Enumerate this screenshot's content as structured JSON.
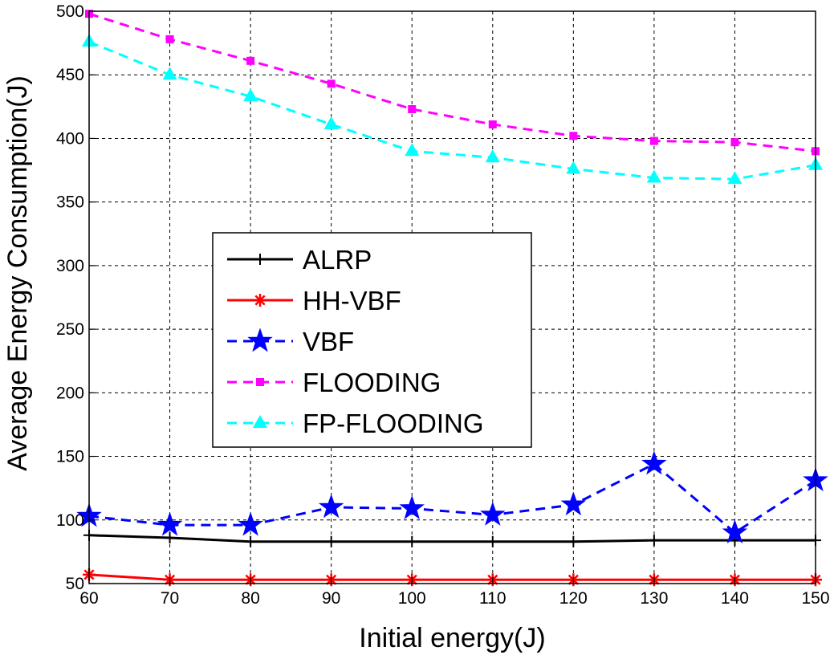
{
  "chart_data": {
    "type": "line",
    "xlabel": "Initial energy(J)",
    "ylabel": "Average Energy Consumption(J)",
    "xlim": [
      60,
      150
    ],
    "ylim": [
      50,
      500
    ],
    "xticks": [
      60,
      70,
      80,
      90,
      100,
      110,
      120,
      130,
      140,
      150
    ],
    "yticks": [
      50,
      100,
      150,
      200,
      250,
      300,
      350,
      400,
      450,
      500
    ],
    "grid": true,
    "legend_position": "center-left",
    "x": [
      60,
      70,
      80,
      90,
      100,
      110,
      120,
      130,
      140,
      150
    ],
    "series": [
      {
        "name": "ALRP",
        "color": "#000000",
        "dash": "solid",
        "marker": "plus",
        "values": [
          88,
          86,
          83,
          83,
          83,
          83,
          83,
          84,
          84,
          84
        ]
      },
      {
        "name": "HH-VBF",
        "color": "#ff0000",
        "dash": "solid",
        "marker": "asterisk",
        "values": [
          57,
          53,
          53,
          53,
          53,
          53,
          53,
          53,
          53,
          53
        ]
      },
      {
        "name": "VBF",
        "color": "#0000ff",
        "dash": "dashed",
        "marker": "star",
        "values": [
          103,
          96,
          96,
          110,
          109,
          104,
          112,
          144,
          90,
          131
        ]
      },
      {
        "name": "FLOODING",
        "color": "#ff00ff",
        "dash": "dashed",
        "marker": "square",
        "values": [
          498,
          478,
          461,
          443,
          423,
          411,
          402,
          398,
          397,
          390
        ]
      },
      {
        "name": "FP-FLOODING",
        "color": "#00ffff",
        "dash": "dashed",
        "marker": "triangle",
        "values": [
          476,
          450,
          433,
          411,
          390,
          385,
          376,
          369,
          368,
          379
        ]
      }
    ]
  }
}
